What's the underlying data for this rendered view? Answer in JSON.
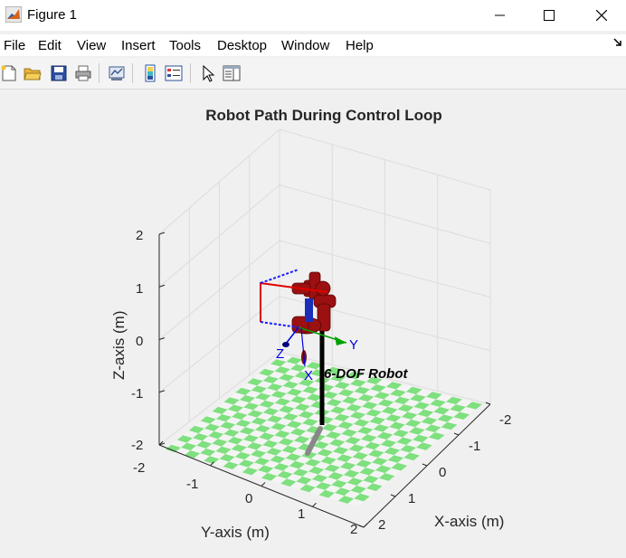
{
  "window": {
    "title": "Figure 1"
  },
  "menu": [
    "File",
    "Edit",
    "View",
    "Insert",
    "Tools",
    "Desktop",
    "Window",
    "Help"
  ],
  "toolbar": [
    "new-figure",
    "open-file",
    "save",
    "print",
    "link-plot",
    "insert-colorbar",
    "insert-legend",
    "edit-plot",
    "property-inspector"
  ],
  "plot": {
    "title": "Robot Path During Control Loop",
    "xlabel": "X-axis (m)",
    "ylabel": "Y-axis (m)",
    "zlabel": "Z-axis (m)",
    "x_ticks": [
      "-2",
      "-1",
      "0",
      "1",
      "2"
    ],
    "y_ticks": [
      "-2",
      "-1",
      "0",
      "1",
      "2"
    ],
    "z_ticks": [
      "2",
      "1",
      "0",
      "-1",
      "-2"
    ],
    "robot_label": "6-DOF Robot",
    "frame_labels": {
      "x": "X",
      "y": "Y",
      "z": "Z"
    }
  },
  "colors": {
    "robot": "#9b1010",
    "floor_green": "#7ee07e",
    "floor_white": "#f4f4f4",
    "frame_x": "#e00000",
    "frame_y": "#00a000",
    "frame_z": "#0000e0"
  }
}
